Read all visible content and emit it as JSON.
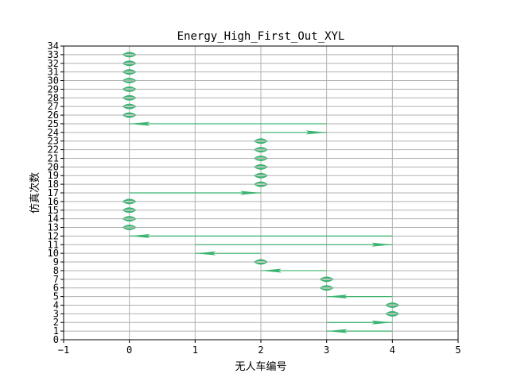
{
  "chart_data": {
    "type": "line",
    "title": "Energy_High_First_Out_XYL",
    "xlabel": "无人车编号",
    "ylabel": "仿真次数",
    "xlim": [
      -1,
      5
    ],
    "ylim": [
      0,
      34
    ],
    "xticks": [
      -1,
      0,
      1,
      2,
      3,
      4,
      5
    ],
    "yticks": [
      0,
      1,
      2,
      3,
      4,
      5,
      6,
      7,
      8,
      9,
      10,
      11,
      12,
      13,
      14,
      15,
      16,
      17,
      18,
      19,
      20,
      21,
      22,
      23,
      24,
      25,
      26,
      27,
      28,
      29,
      30,
      31,
      32,
      33,
      34
    ],
    "grid": true,
    "arrow_color": "#3cb371",
    "arrows": [
      {
        "y": 1,
        "x_from": 4,
        "x_to": 3
      },
      {
        "y": 2,
        "x_from": 3,
        "x_to": 4
      },
      {
        "y": 3,
        "x_from": 4,
        "x_to": 4
      },
      {
        "y": 4,
        "x_from": 4,
        "x_to": 4
      },
      {
        "y": 5,
        "x_from": 4,
        "x_to": 3
      },
      {
        "y": 6,
        "x_from": 3,
        "x_to": 3
      },
      {
        "y": 7,
        "x_from": 3,
        "x_to": 3
      },
      {
        "y": 8,
        "x_from": 3,
        "x_to": 2
      },
      {
        "y": 9,
        "x_from": 2,
        "x_to": 2
      },
      {
        "y": 10,
        "x_from": 2,
        "x_to": 1
      },
      {
        "y": 11,
        "x_from": 1,
        "x_to": 4
      },
      {
        "y": 12,
        "x_from": 4,
        "x_to": 0
      },
      {
        "y": 13,
        "x_from": 0,
        "x_to": 0
      },
      {
        "y": 14,
        "x_from": 0,
        "x_to": 0
      },
      {
        "y": 15,
        "x_from": 0,
        "x_to": 0
      },
      {
        "y": 16,
        "x_from": 0,
        "x_to": 0
      },
      {
        "y": 17,
        "x_from": 0,
        "x_to": 2
      },
      {
        "y": 18,
        "x_from": 2,
        "x_to": 2
      },
      {
        "y": 19,
        "x_from": 2,
        "x_to": 2
      },
      {
        "y": 20,
        "x_from": 2,
        "x_to": 2
      },
      {
        "y": 21,
        "x_from": 2,
        "x_to": 2
      },
      {
        "y": 22,
        "x_from": 2,
        "x_to": 2
      },
      {
        "y": 23,
        "x_from": 2,
        "x_to": 2
      },
      {
        "y": 24,
        "x_from": 2,
        "x_to": 3
      },
      {
        "y": 25,
        "x_from": 3,
        "x_to": 0
      },
      {
        "y": 26,
        "x_from": 0,
        "x_to": 0
      },
      {
        "y": 27,
        "x_from": 0,
        "x_to": 0
      },
      {
        "y": 28,
        "x_from": 0,
        "x_to": 0
      },
      {
        "y": 29,
        "x_from": 0,
        "x_to": 0
      },
      {
        "y": 30,
        "x_from": 0,
        "x_to": 0
      },
      {
        "y": 31,
        "x_from": 0,
        "x_to": 0
      },
      {
        "y": 32,
        "x_from": 0,
        "x_to": 0
      },
      {
        "y": 33,
        "x_from": 0,
        "x_to": 0
      }
    ]
  }
}
